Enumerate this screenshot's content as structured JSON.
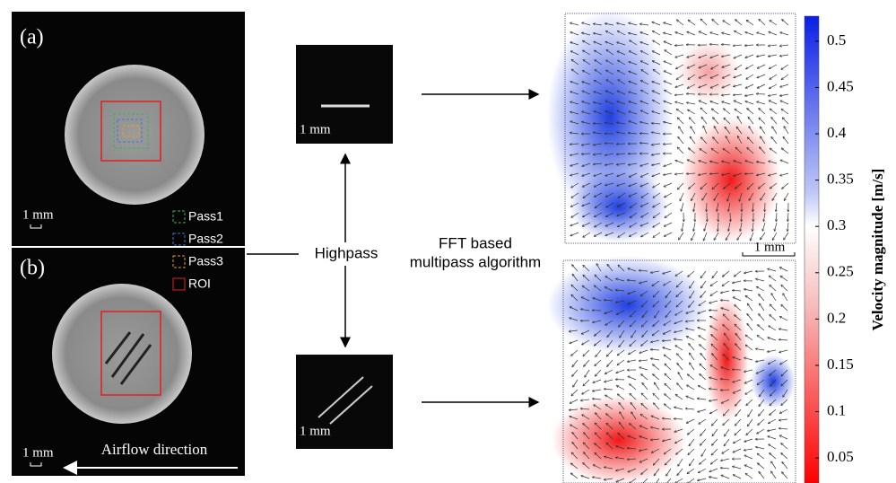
{
  "panel_a": {
    "label": "(a)",
    "scale_bar": "1 mm",
    "legend": [
      "Pass1",
      "Pass2",
      "Pass3",
      "ROI"
    ]
  },
  "panel_b": {
    "label": "(b)",
    "scale_bar": "1 mm",
    "airflow": "Airflow direction"
  },
  "highpass": {
    "label": "Highpass",
    "scale_bar_top": "1 mm",
    "scale_bar_bottom": "1 mm"
  },
  "algorithm": {
    "line1": "FFT based",
    "line2": "multipass algorithm"
  },
  "velocity_map": {
    "scale_bar": "1 mm"
  },
  "colorbar": {
    "label": "Velocity magnitude [m/s]",
    "lim": [
      0.023,
      0.527
    ],
    "ticks": [
      0.05,
      0.1,
      0.15,
      0.2,
      0.25,
      0.3,
      0.35,
      0.4,
      0.45,
      0.5
    ]
  }
}
